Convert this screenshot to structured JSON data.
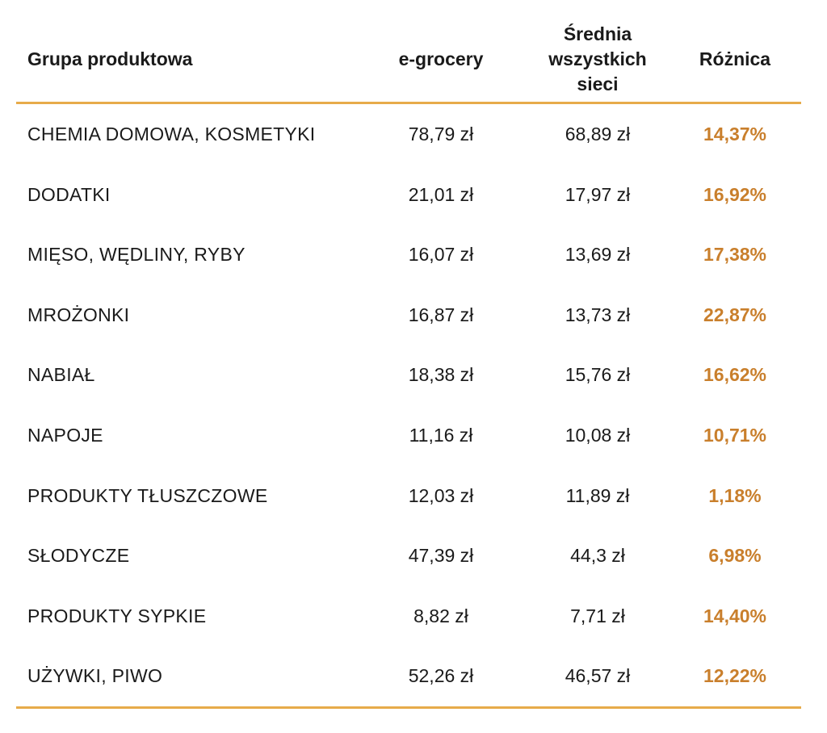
{
  "header": {
    "group": "Grupa produktowa",
    "egrocery": "e-grocery",
    "avg_line1": "Średnia",
    "avg_line2": "wszystkich",
    "avg_line3": "sieci",
    "diff": "Różnica"
  },
  "colors": {
    "rule": "#e7ab4a",
    "highlight": "#c97f2c"
  },
  "rows": [
    {
      "group": "CHEMIA DOMOWA, KOSMETYKI",
      "egrocery": "78,79 zł",
      "avg": "68,89 zł",
      "diff": "14,37%"
    },
    {
      "group": "DODATKI",
      "egrocery": "21,01 zł",
      "avg": "17,97 zł",
      "diff": "16,92%"
    },
    {
      "group": "MIĘSO, WĘDLINY, RYBY",
      "egrocery": "16,07 zł",
      "avg": "13,69 zł",
      "diff": "17,38%"
    },
    {
      "group": "MROŻONKI",
      "egrocery": "16,87 zł",
      "avg": "13,73 zł",
      "diff": "22,87%"
    },
    {
      "group": "NABIAŁ",
      "egrocery": "18,38 zł",
      "avg": "15,76 zł",
      "diff": "16,62%"
    },
    {
      "group": "NAPOJE",
      "egrocery": "11,16 zł",
      "avg": "10,08 zł",
      "diff": "10,71%"
    },
    {
      "group": "PRODUKTY TŁUSZCZOWE",
      "egrocery": "12,03 zł",
      "avg": "11,89 zł",
      "diff": "1,18%"
    },
    {
      "group": "SŁODYCZE",
      "egrocery": "47,39 zł",
      "avg": "44,3 zł",
      "diff": "6,98%"
    },
    {
      "group": "PRODUKTY SYPKIE",
      "egrocery": "8,82 zł",
      "avg": "7,71 zł",
      "diff": "14,40%"
    },
    {
      "group": "UŻYWKI, PIWO",
      "egrocery": "52,26 zł",
      "avg": "46,57 zł",
      "diff": "12,22%"
    }
  ]
}
